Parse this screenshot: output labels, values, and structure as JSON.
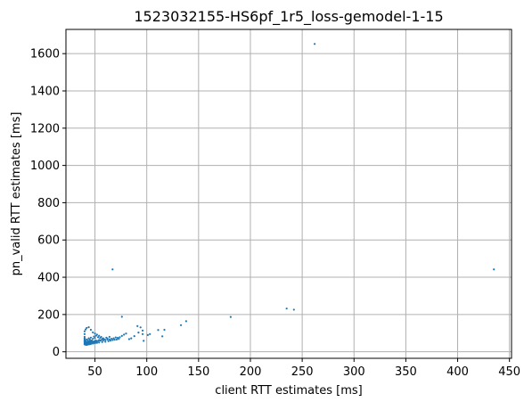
{
  "chart_data": {
    "type": "scatter",
    "title": "1523032155-HS6pf_1r5_loss-gemodel-1-15",
    "xlabel": "client RTT estimates [ms]",
    "ylabel": "pn_valid RTT estimates [ms]",
    "xlim": [
      22,
      452
    ],
    "ylim": [
      -35,
      1730
    ],
    "xticks": [
      50,
      100,
      150,
      200,
      250,
      300,
      350,
      400,
      450
    ],
    "yticks": [
      0,
      200,
      400,
      600,
      800,
      1000,
      1200,
      1400,
      1600
    ],
    "grid": true,
    "marker_color": "#1f77b4",
    "series": [
      {
        "points": [
          [
            262,
            1652
          ],
          [
            435,
            442
          ],
          [
            67,
            442
          ],
          [
            235,
            232
          ],
          [
            242,
            226
          ],
          [
            181,
            187
          ],
          [
            76,
            188
          ],
          [
            138,
            164
          ],
          [
            133,
            143
          ],
          [
            111,
            117
          ],
          [
            117,
            118
          ],
          [
            115,
            83
          ],
          [
            103,
            95
          ],
          [
            101,
            90
          ],
          [
            91,
            138
          ],
          [
            94,
            131
          ],
          [
            96,
            114
          ],
          [
            96,
            95
          ],
          [
            92,
            103
          ],
          [
            97,
            59
          ],
          [
            88,
            84
          ],
          [
            85,
            72
          ],
          [
            83,
            68
          ],
          [
            80,
            98
          ],
          [
            78,
            92
          ],
          [
            76,
            85
          ],
          [
            74,
            78
          ],
          [
            72,
            75
          ],
          [
            70,
            77
          ],
          [
            68,
            72
          ],
          [
            66,
            70
          ],
          [
            64,
            67
          ],
          [
            62,
            66
          ],
          [
            60,
            64
          ],
          [
            58,
            61
          ],
          [
            56,
            62
          ],
          [
            55,
            60
          ],
          [
            54,
            63
          ],
          [
            53,
            58
          ],
          [
            52,
            57
          ],
          [
            51,
            60
          ],
          [
            50,
            55
          ],
          [
            49,
            56
          ],
          [
            48,
            53
          ],
          [
            47,
            54
          ],
          [
            46,
            52
          ],
          [
            45,
            50
          ],
          [
            44,
            48
          ],
          [
            43,
            46
          ],
          [
            42,
            45
          ],
          [
            41,
            44
          ],
          [
            40,
            43
          ],
          [
            40,
            47
          ],
          [
            41,
            49
          ],
          [
            42,
            51
          ],
          [
            43,
            53
          ],
          [
            44,
            55
          ],
          [
            45,
            57
          ],
          [
            46,
            59
          ],
          [
            47,
            61
          ],
          [
            40,
            52
          ],
          [
            40,
            56
          ],
          [
            40,
            60
          ],
          [
            40,
            64
          ],
          [
            40,
            68
          ],
          [
            40,
            72
          ],
          [
            40,
            80
          ],
          [
            40,
            95
          ],
          [
            40,
            110
          ],
          [
            41,
            120
          ],
          [
            42,
            128
          ],
          [
            44,
            132
          ],
          [
            46,
            118
          ],
          [
            48,
            104
          ],
          [
            50,
            98
          ],
          [
            52,
            92
          ],
          [
            54,
            86
          ],
          [
            56,
            80
          ],
          [
            41,
            38
          ],
          [
            42,
            37
          ],
          [
            43,
            39
          ],
          [
            44,
            40
          ],
          [
            45,
            41
          ],
          [
            46,
            42
          ],
          [
            48,
            44
          ],
          [
            50,
            46
          ],
          [
            52,
            48
          ],
          [
            54,
            50
          ],
          [
            57,
            52
          ],
          [
            60,
            54
          ],
          [
            63,
            57
          ],
          [
            65,
            60
          ],
          [
            67,
            63
          ],
          [
            69,
            65
          ],
          [
            71,
            66
          ],
          [
            73,
            69
          ],
          [
            58,
            72
          ],
          [
            61,
            76
          ],
          [
            64,
            80
          ],
          [
            48,
            70
          ],
          [
            50,
            74
          ],
          [
            45,
            66
          ],
          [
            43,
            62
          ],
          [
            41,
            58
          ],
          [
            42,
            66
          ],
          [
            44,
            72
          ],
          [
            46,
            76
          ],
          [
            49,
            82
          ],
          [
            51,
            86
          ],
          [
            53,
            78
          ],
          [
            55,
            74
          ],
          [
            57,
            69
          ],
          [
            59,
            67
          ],
          [
            62,
            71
          ],
          [
            40,
            40
          ],
          [
            41,
            41
          ],
          [
            42,
            42
          ],
          [
            43,
            43
          ],
          [
            44,
            44
          ],
          [
            45,
            45
          ],
          [
            46,
            47
          ],
          [
            47,
            48
          ],
          [
            48,
            49
          ],
          [
            49,
            50
          ],
          [
            50,
            51
          ],
          [
            51,
            52
          ]
        ]
      }
    ]
  }
}
